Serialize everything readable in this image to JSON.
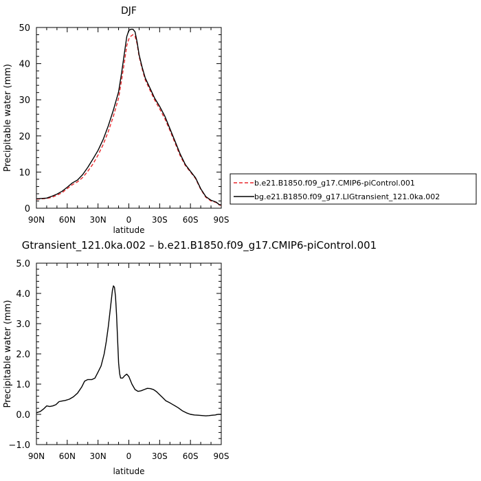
{
  "chart_data": [
    {
      "type": "line",
      "title": "DJF",
      "xlabel": "latitude",
      "ylabel": "Precipitable water (mm)",
      "xlim": [
        90,
        -90
      ],
      "ylim": [
        0,
        50
      ],
      "x_ticks": [
        90,
        60,
        30,
        0,
        -30,
        -60,
        -90
      ],
      "x_tick_labels": [
        "90N",
        "60N",
        "30N",
        "0",
        "30S",
        "60S",
        "90S"
      ],
      "y_ticks": [
        0,
        10,
        20,
        30,
        40,
        50
      ],
      "y_tick_labels": [
        "0",
        "10",
        "20",
        "30",
        "40",
        "50"
      ],
      "grid": false,
      "legend_position": "right",
      "series": [
        {
          "name": "b.e21.B1850.f09_g17.CMIP6-piControl.001",
          "color": "#e8262a",
          "dash": "dashed",
          "points": [
            [
              90,
              2.5
            ],
            [
              85,
              2.6
            ],
            [
              80,
              2.7
            ],
            [
              75,
              3.0
            ],
            [
              70,
              3.6
            ],
            [
              65,
              4.3
            ],
            [
              60,
              5.4
            ],
            [
              55,
              6.5
            ],
            [
              50,
              7.3
            ],
            [
              45,
              8.5
            ],
            [
              40,
              10.2
            ],
            [
              35,
              12.2
            ],
            [
              30,
              14.7
            ],
            [
              25,
              17.6
            ],
            [
              20,
              21.2
            ],
            [
              15,
              25.5
            ],
            [
              10,
              30.5
            ],
            [
              7,
              35.5
            ],
            [
              4,
              41.0
            ],
            [
              2,
              45.0
            ],
            [
              0,
              46.8
            ],
            [
              -2,
              47.6
            ],
            [
              -4,
              48.0
            ],
            [
              -6,
              47.6
            ],
            [
              -8,
              45.5
            ],
            [
              -10,
              42.0
            ],
            [
              -13,
              38.5
            ],
            [
              -16,
              35.5
            ],
            [
              -20,
              33.0
            ],
            [
              -25,
              30.0
            ],
            [
              -30,
              27.5
            ],
            [
              -35,
              24.8
            ],
            [
              -40,
              21.5
            ],
            [
              -45,
              18.0
            ],
            [
              -50,
              14.5
            ],
            [
              -55,
              11.8
            ],
            [
              -60,
              10.0
            ],
            [
              -65,
              8.2
            ],
            [
              -70,
              5.2
            ],
            [
              -75,
              3.0
            ],
            [
              -80,
              2.0
            ],
            [
              -85,
              1.6
            ],
            [
              -88,
              0.9
            ],
            [
              -90,
              0.8
            ]
          ]
        },
        {
          "name": "bg.e21.B1850.f09_g17.LIGtransient_121.0ka.002",
          "color": "#000000",
          "dash": "solid",
          "points": [
            [
              90,
              2.6
            ],
            [
              85,
              2.7
            ],
            [
              80,
              2.8
            ],
            [
              75,
              3.3
            ],
            [
              70,
              3.9
            ],
            [
              65,
              4.7
            ],
            [
              60,
              5.8
            ],
            [
              55,
              7.0
            ],
            [
              50,
              7.8
            ],
            [
              45,
              9.3
            ],
            [
              40,
              11.3
            ],
            [
              35,
              13.6
            ],
            [
              30,
              16.0
            ],
            [
              25,
              19.0
            ],
            [
              20,
              22.8
            ],
            [
              15,
              27.2
            ],
            [
              10,
              32.2
            ],
            [
              7,
              37.5
            ],
            [
              4,
              43.5
            ],
            [
              2,
              47.5
            ],
            [
              0,
              49.2
            ],
            [
              -2,
              49.5
            ],
            [
              -4,
              49.5
            ],
            [
              -6,
              48.8
            ],
            [
              -8,
              46.0
            ],
            [
              -10,
              42.5
            ],
            [
              -13,
              39.0
            ],
            [
              -16,
              36.0
            ],
            [
              -20,
              33.6
            ],
            [
              -25,
              30.5
            ],
            [
              -30,
              28.2
            ],
            [
              -35,
              25.5
            ],
            [
              -40,
              22.0
            ],
            [
              -45,
              18.5
            ],
            [
              -50,
              15.0
            ],
            [
              -55,
              12.1
            ],
            [
              -60,
              10.2
            ],
            [
              -65,
              8.4
            ],
            [
              -70,
              5.4
            ],
            [
              -75,
              3.2
            ],
            [
              -80,
              2.2
            ],
            [
              -85,
              1.7
            ],
            [
              -88,
              1.0
            ],
            [
              -90,
              0.9
            ]
          ]
        }
      ]
    },
    {
      "type": "line",
      "title": "Gtransient_121.0ka.002 – b.e21.B1850.f09_g17.CMIP6-piControl.001",
      "xlabel": "latitude",
      "ylabel": "Precipitable water (mm)",
      "xlim": [
        90,
        -90
      ],
      "ylim": [
        -1,
        5
      ],
      "x_ticks": [
        90,
        60,
        30,
        0,
        -30,
        -60,
        -90
      ],
      "x_tick_labels": [
        "90N",
        "60N",
        "30N",
        "0",
        "30S",
        "60S",
        "90S"
      ],
      "y_ticks": [
        -1,
        0,
        1,
        2,
        3,
        4,
        5
      ],
      "y_tick_labels": [
        "−1.0",
        "0.0",
        "1.0",
        "2.0",
        "3.0",
        "4.0",
        "5.0"
      ],
      "grid": false,
      "series": [
        {
          "color": "#000000",
          "dash": "solid",
          "points": [
            [
              90,
              0.05
            ],
            [
              86,
              0.1
            ],
            [
              83,
              0.18
            ],
            [
              80,
              0.28
            ],
            [
              77,
              0.26
            ],
            [
              74,
              0.28
            ],
            [
              71,
              0.32
            ],
            [
              68,
              0.42
            ],
            [
              65,
              0.44
            ],
            [
              62,
              0.46
            ],
            [
              58,
              0.5
            ],
            [
              54,
              0.58
            ],
            [
              50,
              0.7
            ],
            [
              46,
              0.9
            ],
            [
              43,
              1.1
            ],
            [
              40,
              1.15
            ],
            [
              36,
              1.15
            ],
            [
              33,
              1.2
            ],
            [
              30,
              1.4
            ],
            [
              27,
              1.6
            ],
            [
              24,
              2.0
            ],
            [
              22,
              2.4
            ],
            [
              20,
              2.9
            ],
            [
              18,
              3.5
            ],
            [
              16,
              4.1
            ],
            [
              15,
              4.25
            ],
            [
              14,
              4.2
            ],
            [
              13,
              3.9
            ],
            [
              12,
              3.3
            ],
            [
              11,
              2.5
            ],
            [
              10,
              1.7
            ],
            [
              9,
              1.35
            ],
            [
              8,
              1.2
            ],
            [
              6,
              1.2
            ],
            [
              4,
              1.28
            ],
            [
              2,
              1.33
            ],
            [
              0,
              1.25
            ],
            [
              -3,
              1.0
            ],
            [
              -6,
              0.82
            ],
            [
              -9,
              0.76
            ],
            [
              -12,
              0.78
            ],
            [
              -15,
              0.82
            ],
            [
              -18,
              0.86
            ],
            [
              -21,
              0.85
            ],
            [
              -24,
              0.82
            ],
            [
              -27,
              0.75
            ],
            [
              -30,
              0.65
            ],
            [
              -33,
              0.55
            ],
            [
              -36,
              0.45
            ],
            [
              -40,
              0.38
            ],
            [
              -44,
              0.3
            ],
            [
              -48,
              0.22
            ],
            [
              -52,
              0.12
            ],
            [
              -56,
              0.05
            ],
            [
              -60,
              0.0
            ],
            [
              -64,
              -0.02
            ],
            [
              -68,
              -0.03
            ],
            [
              -72,
              -0.04
            ],
            [
              -75,
              -0.05
            ],
            [
              -78,
              -0.04
            ],
            [
              -81,
              -0.03
            ],
            [
              -84,
              -0.02
            ],
            [
              -87,
              0.0
            ],
            [
              -90,
              0.0
            ]
          ]
        }
      ]
    }
  ]
}
